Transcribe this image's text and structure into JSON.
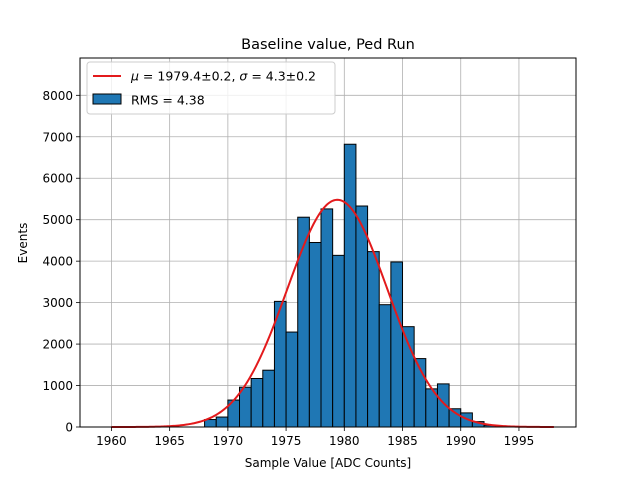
{
  "chart_data": {
    "type": "bar",
    "title": "Baseline value, Ped Run",
    "xlabel": "Sample Value [ADC Counts]",
    "ylabel": "Events",
    "xlim": [
      1957.3,
      1999.9
    ],
    "ylim": [
      0,
      8900
    ],
    "xticks": [
      1960,
      1965,
      1970,
      1975,
      1980,
      1985,
      1990,
      1995
    ],
    "yticks": [
      0,
      1000,
      2000,
      3000,
      4000,
      5000,
      6000,
      7000,
      8000
    ],
    "grid": true,
    "legend_position": "upper-left",
    "series": [
      {
        "name": "RMS = 4.38",
        "kind": "histogram",
        "color": "#1f77b4",
        "edge_color": "#000000",
        "bin_left_edges": [
          1960,
          1961,
          1962,
          1963,
          1964,
          1965,
          1966,
          1967,
          1968,
          1969,
          1970,
          1971,
          1972,
          1973,
          1974,
          1975,
          1976,
          1977,
          1978,
          1979,
          1980,
          1981,
          1982,
          1983,
          1984,
          1985,
          1986,
          1987,
          1988,
          1989,
          1990,
          1991,
          1992,
          1993,
          1994,
          1995,
          1996,
          1997
        ],
        "bin_width": 1,
        "values": [
          0,
          0,
          0,
          0,
          0,
          0,
          0,
          0,
          180,
          240,
          650,
          960,
          1170,
          1370,
          3030,
          2290,
          5060,
          4450,
          5260,
          4140,
          6820,
          5330,
          4230,
          2950,
          3980,
          2420,
          1650,
          920,
          1040,
          440,
          340,
          130,
          40,
          0,
          0,
          0,
          0,
          0
        ]
      },
      {
        "name": "$\\mu = 1979.4 \\pm 0.2$, $\\sigma = 4.3 \\pm 0.2$",
        "legend_parts": [
          {
            "text": "μ",
            "italic": true
          },
          {
            "text": " = 1979.4±0.2, ",
            "italic": false
          },
          {
            "text": "σ",
            "italic": true
          },
          {
            "text": " = 4.3±0.2",
            "italic": false
          }
        ],
        "kind": "gaussian-fit",
        "color": "#e31a1c",
        "mu": 1979.4,
        "sigma": 4.3,
        "amplitude": 5480,
        "x_range": [
          1960,
          1998
        ]
      }
    ]
  }
}
